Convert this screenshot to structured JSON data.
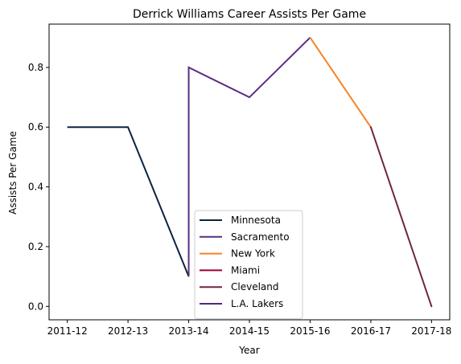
{
  "chart_data": {
    "type": "line",
    "title": "Derrick Williams  Career Assists Per Game",
    "xlabel": "Year",
    "ylabel": "Assists Per Game",
    "categories": [
      "2011-12",
      "2012-13",
      "2013-14",
      "2014-15",
      "2015-16",
      "2016-17",
      "2017-18"
    ],
    "yticks": [
      "0.0",
      "0.2",
      "0.4",
      "0.6",
      "0.8"
    ],
    "ylim": [
      -0.045,
      0.945
    ],
    "grid": false,
    "legend_position": "bottom-center",
    "series": [
      {
        "name": "Minnesota",
        "color": "#0C2340",
        "points": [
          [
            "2011-12",
            0.6
          ],
          [
            "2012-13",
            0.6
          ],
          [
            "2013-14",
            0.1
          ]
        ]
      },
      {
        "name": "Sacramento",
        "color": "#5A2D81",
        "points": [
          [
            "2013-14",
            0.1
          ],
          [
            "2013-14",
            0.8
          ],
          [
            "2014-15",
            0.7
          ],
          [
            "2015-16",
            0.9
          ]
        ]
      },
      {
        "name": "New York",
        "color": "#F58426",
        "points": [
          [
            "2015-16",
            0.9
          ],
          [
            "2016-17",
            0.6
          ]
        ]
      },
      {
        "name": "Miami",
        "color": "#98002E",
        "points": [
          [
            "2016-17",
            0.6
          ]
        ]
      },
      {
        "name": "Cleveland",
        "color": "#6F263D",
        "points": [
          [
            "2016-17",
            0.6
          ],
          [
            "2017-18",
            0.0
          ]
        ]
      },
      {
        "name": "L.A. Lakers",
        "color": "#552583",
        "points": [
          [
            "2017-18",
            0.0
          ]
        ]
      }
    ]
  }
}
